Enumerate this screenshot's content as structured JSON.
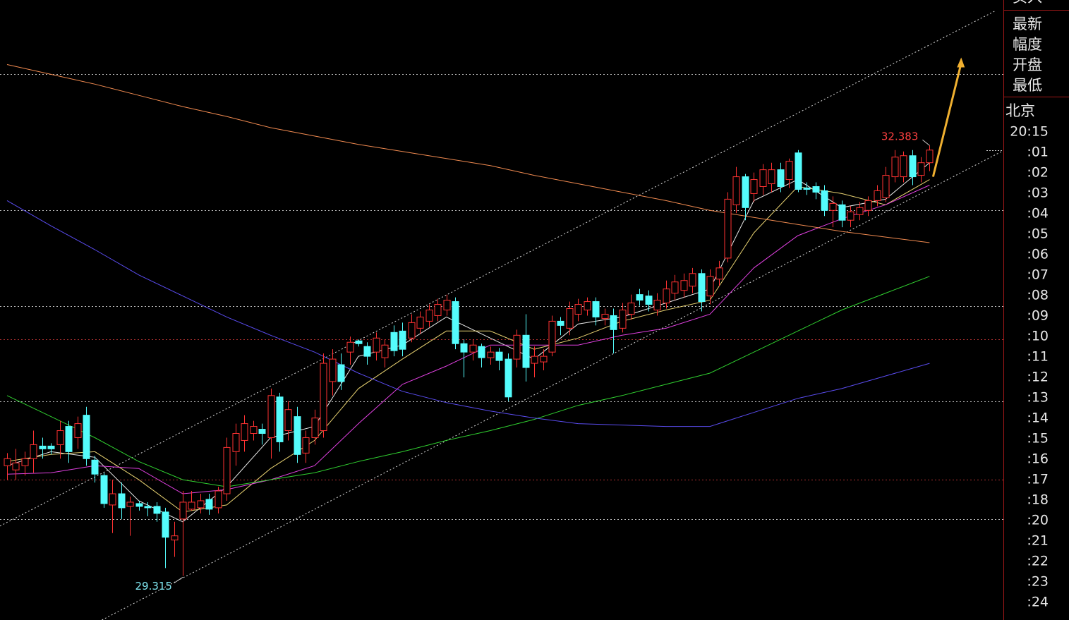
{
  "chart_data": {
    "type": "candlestick",
    "ylim": [
      29.0,
      33.42
    ],
    "xlim": [
      -0.8,
      113.4
    ],
    "up_color": "#ff3232",
    "down_color": "#54fcfc",
    "low_label_color": "#7fe6f0",
    "high_label_color": "#ff4040",
    "ohlc": [
      [
        30.1,
        30.19,
        30.0,
        30.15
      ],
      [
        30.07,
        30.22,
        30.0,
        30.12
      ],
      [
        30.1,
        30.2,
        30.03,
        30.15
      ],
      [
        30.15,
        30.35,
        30.05,
        30.25
      ],
      [
        30.24,
        30.3,
        30.15,
        30.22
      ],
      [
        30.24,
        30.26,
        30.18,
        30.22
      ],
      [
        30.25,
        30.42,
        30.15,
        30.35
      ],
      [
        30.38,
        30.42,
        30.12,
        30.2
      ],
      [
        30.3,
        30.45,
        30.22,
        30.4
      ],
      [
        30.46,
        30.52,
        30.1,
        30.15
      ],
      [
        30.14,
        30.17,
        29.98,
        30.04
      ],
      [
        30.03,
        30.05,
        29.8,
        29.83
      ],
      [
        29.82,
        30.0,
        29.62,
        29.9
      ],
      [
        29.9,
        29.98,
        29.72,
        29.8
      ],
      [
        29.81,
        29.88,
        29.6,
        29.84
      ],
      [
        29.83,
        29.85,
        29.78,
        29.81
      ],
      [
        29.81,
        29.84,
        29.74,
        29.8
      ],
      [
        29.81,
        29.84,
        29.7,
        29.76
      ],
      [
        29.77,
        29.8,
        29.37,
        29.59
      ],
      [
        29.57,
        29.7,
        29.45,
        29.6
      ],
      [
        29.72,
        29.92,
        29.315,
        29.84
      ],
      [
        29.79,
        29.92,
        29.78,
        29.84
      ],
      [
        29.8,
        29.9,
        29.76,
        29.85
      ],
      [
        29.86,
        29.9,
        29.75,
        29.79
      ],
      [
        29.8,
        29.95,
        29.76,
        29.92
      ],
      [
        29.9,
        30.3,
        29.85,
        30.23
      ],
      [
        30.2,
        30.4,
        30.1,
        30.33
      ],
      [
        30.28,
        30.46,
        30.2,
        30.4
      ],
      [
        30.33,
        30.42,
        30.28,
        30.38
      ],
      [
        30.36,
        30.4,
        30.25,
        30.33
      ],
      [
        30.3,
        30.65,
        30.15,
        30.6
      ],
      [
        30.59,
        30.62,
        30.2,
        30.27
      ],
      [
        30.35,
        30.56,
        30.28,
        30.5
      ],
      [
        30.45,
        30.52,
        30.12,
        30.18
      ],
      [
        30.19,
        30.35,
        30.12,
        30.3
      ],
      [
        30.3,
        30.5,
        30.25,
        30.44
      ],
      [
        30.35,
        30.9,
        30.3,
        30.83
      ],
      [
        30.7,
        30.93,
        30.6,
        30.86
      ],
      [
        30.82,
        30.9,
        30.64,
        30.7
      ],
      [
        30.91,
        31.02,
        30.82,
        30.98
      ],
      [
        30.99,
        31.0,
        30.95,
        30.97
      ],
      [
        30.95,
        30.98,
        30.82,
        30.88
      ],
      [
        30.91,
        31.05,
        30.85,
        31.01
      ],
      [
        30.87,
        31.0,
        30.8,
        30.96
      ],
      [
        31.05,
        31.1,
        30.88,
        30.92
      ],
      [
        31.06,
        31.12,
        30.88,
        30.93
      ],
      [
        31.01,
        31.18,
        30.98,
        31.12
      ],
      [
        31.08,
        31.2,
        31.04,
        31.16
      ],
      [
        31.13,
        31.25,
        31.09,
        31.21
      ],
      [
        31.17,
        31.29,
        31.13,
        31.25
      ],
      [
        31.21,
        31.32,
        31.17,
        31.28
      ],
      [
        31.27,
        31.3,
        30.93,
        30.97
      ],
      [
        30.97,
        31.0,
        30.73,
        30.91
      ],
      [
        30.91,
        31.0,
        30.85,
        30.96
      ],
      [
        30.95,
        30.97,
        30.8,
        30.87
      ],
      [
        30.87,
        30.95,
        30.82,
        30.91
      ],
      [
        30.91,
        30.94,
        30.78,
        30.85
      ],
      [
        30.86,
        30.9,
        30.56,
        30.59
      ],
      [
        30.86,
        31.07,
        30.8,
        31.03
      ],
      [
        31.03,
        31.18,
        30.7,
        30.8
      ],
      [
        30.83,
        30.95,
        30.73,
        30.88
      ],
      [
        30.84,
        30.93,
        30.78,
        30.88
      ],
      [
        30.91,
        31.17,
        30.88,
        31.13
      ],
      [
        31.13,
        31.16,
        31.03,
        31.1
      ],
      [
        31.08,
        31.27,
        31.03,
        31.22
      ],
      [
        31.18,
        31.29,
        31.13,
        31.25
      ],
      [
        31.21,
        31.3,
        31.17,
        31.27
      ],
      [
        31.27,
        31.3,
        31.1,
        31.16
      ],
      [
        31.15,
        31.22,
        31.1,
        31.18
      ],
      [
        31.17,
        31.22,
        30.9,
        31.07
      ],
      [
        31.08,
        31.26,
        31.05,
        31.21
      ],
      [
        31.18,
        31.32,
        31.14,
        31.26
      ],
      [
        31.32,
        31.36,
        31.24,
        31.28
      ],
      [
        31.31,
        31.35,
        31.2,
        31.25
      ],
      [
        31.21,
        31.33,
        31.17,
        31.28
      ],
      [
        31.26,
        31.42,
        31.22,
        31.36
      ],
      [
        31.33,
        31.46,
        31.28,
        31.41
      ],
      [
        31.35,
        31.47,
        31.3,
        31.42
      ],
      [
        31.38,
        31.51,
        31.33,
        31.47
      ],
      [
        31.47,
        31.5,
        31.2,
        31.27
      ],
      [
        31.31,
        31.5,
        31.25,
        31.45
      ],
      [
        31.43,
        31.56,
        31.38,
        31.51
      ],
      [
        31.58,
        32.05,
        31.55,
        32.0
      ],
      [
        31.96,
        32.23,
        31.9,
        32.16
      ],
      [
        32.16,
        32.18,
        31.85,
        31.94
      ],
      [
        32.04,
        32.19,
        31.98,
        32.14
      ],
      [
        32.09,
        32.25,
        32.03,
        32.21
      ],
      [
        32.11,
        32.26,
        32.05,
        32.21
      ],
      [
        32.21,
        32.26,
        32.05,
        32.09
      ],
      [
        32.14,
        32.29,
        32.08,
        32.27
      ],
      [
        32.33,
        32.35,
        32.05,
        32.07
      ],
      [
        32.08,
        32.12,
        32.03,
        32.07
      ],
      [
        32.09,
        32.12,
        32.0,
        32.05
      ],
      [
        32.06,
        32.1,
        31.88,
        31.92
      ],
      [
        31.92,
        32.02,
        31.8,
        31.97
      ],
      [
        31.96,
        31.99,
        31.8,
        31.85
      ],
      [
        31.85,
        31.95,
        31.8,
        31.91
      ],
      [
        31.89,
        31.98,
        31.85,
        31.94
      ],
      [
        31.92,
        32.02,
        31.88,
        31.99
      ],
      [
        31.99,
        32.1,
        31.95,
        32.06
      ],
      [
        32.01,
        32.23,
        31.98,
        32.17
      ],
      [
        32.16,
        32.35,
        32.12,
        32.3
      ],
      [
        32.16,
        32.34,
        32.12,
        32.31
      ],
      [
        32.31,
        32.35,
        32.1,
        32.16
      ],
      [
        32.17,
        32.3,
        32.12,
        32.26
      ],
      [
        32.26,
        32.383,
        32.2,
        32.35
      ]
    ],
    "ma_x": [
      0,
      5,
      10,
      15,
      20,
      25,
      30,
      35,
      40,
      45,
      50,
      55,
      60,
      65,
      70,
      75,
      80,
      85,
      90,
      95,
      100,
      105
    ],
    "series": [
      {
        "color": "#e8e8e8",
        "values": [
          30.1,
          30.2,
          30.16,
          29.85,
          29.7,
          29.95,
          30.3,
          30.38,
          30.88,
          30.96,
          31.16,
          31.01,
          30.86,
          31.11,
          31.16,
          31.26,
          31.36,
          31.99,
          32.14,
          31.94,
          32.0,
          32.26
        ]
      },
      {
        "color": "#e6d070",
        "values": [
          30.13,
          30.18,
          30.2,
          30.0,
          29.77,
          29.82,
          30.08,
          30.28,
          30.65,
          30.86,
          31.06,
          31.06,
          30.93,
          31.01,
          31.13,
          31.21,
          31.28,
          31.76,
          32.09,
          32.04,
          31.96,
          32.14
        ]
      },
      {
        "color": "#e040e0",
        "values": [
          30.04,
          30.05,
          30.1,
          30.08,
          29.9,
          29.93,
          30.0,
          30.1,
          30.4,
          30.68,
          30.81,
          30.96,
          30.96,
          30.96,
          31.03,
          31.08,
          31.18,
          31.51,
          31.74,
          31.86,
          31.96,
          32.1
        ]
      },
      {
        "color": "#30d030",
        "values": [
          30.6,
          30.45,
          30.3,
          30.13,
          30.0,
          29.95,
          30.0,
          30.05,
          30.13,
          30.2,
          30.28,
          30.35,
          30.43,
          30.53,
          30.6,
          30.68,
          30.76,
          30.91,
          31.06,
          31.21,
          31.33,
          31.45
        ]
      },
      {
        "color": "#5a4cf0",
        "values": [
          31.99,
          31.81,
          31.64,
          31.46,
          31.31,
          31.16,
          31.03,
          30.91,
          30.76,
          30.63,
          30.55,
          30.49,
          30.44,
          30.4,
          30.39,
          30.38,
          30.38,
          30.48,
          30.58,
          30.65,
          30.74,
          30.83
        ]
      },
      {
        "color": "#f08a50",
        "values": [
          32.96,
          32.89,
          32.82,
          32.74,
          32.66,
          32.59,
          32.51,
          32.45,
          32.39,
          32.34,
          32.29,
          32.24,
          32.17,
          32.11,
          32.05,
          31.99,
          31.92,
          31.87,
          31.82,
          31.77,
          31.73,
          31.69
        ]
      }
    ],
    "hlines": [
      {
        "value": 32.89,
        "color": "#bbbbbb"
      },
      {
        "value": 31.92,
        "color": "#bbbbbb"
      },
      {
        "value": 31.24,
        "color": "#bbbbbb"
      },
      {
        "value": 31.0,
        "color": "#b03030"
      },
      {
        "value": 30.56,
        "color": "#bbbbbb"
      },
      {
        "value": 30.0,
        "color": "#b03030"
      },
      {
        "value": 29.72,
        "color": "#bbbbbb"
      }
    ],
    "trendlines": [
      {
        "x": [
          -0.8,
          112.4
        ],
        "values": [
          29.67,
          33.34
        ],
        "color": "#dddddd"
      },
      {
        "x": [
          10.8,
          113.2
        ],
        "values": [
          29.0,
          32.34
        ],
        "color": "#dddddd"
      }
    ],
    "arrow": {
      "x": [
        105.4,
        108.6
      ],
      "values": [
        32.16,
        33.01
      ],
      "color": "#f0b030"
    }
  },
  "side_panel": {
    "labels": [
      "买入",
      "最新",
      "幅度",
      "开盘",
      "最低"
    ],
    "city": "北京",
    "times": [
      "20:15",
      ":01",
      ":02",
      ":03",
      ":04",
      ":05",
      ":06",
      ":07",
      ":08",
      ":09",
      ":10",
      ":11",
      ":12",
      ":13",
      ":14",
      ":15",
      ":16",
      ":17",
      ":18",
      ":20",
      ":21",
      ":22",
      ":23",
      ":24"
    ]
  }
}
